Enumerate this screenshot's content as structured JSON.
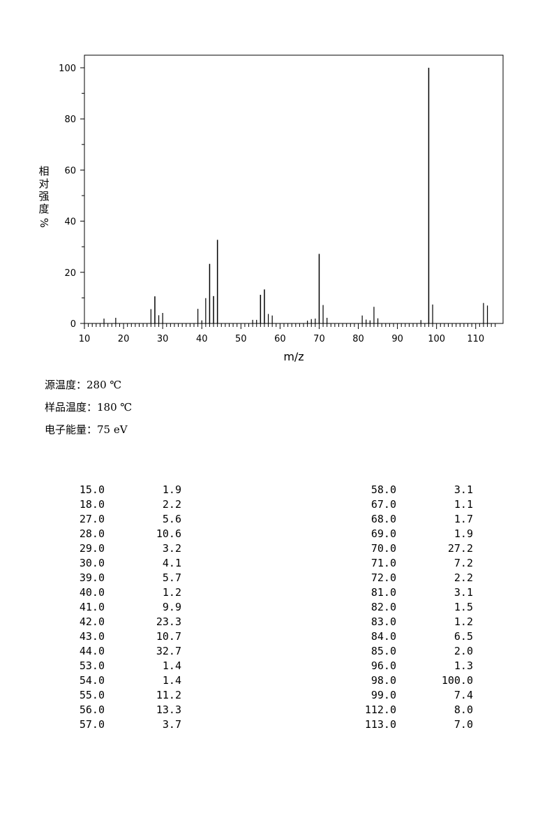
{
  "chart_data": {
    "type": "bar",
    "xlabel": "m/z",
    "ylabel_chars": [
      "相",
      "对",
      "强",
      "度"
    ],
    "ylabel_unit": "%",
    "xlim": [
      10,
      117
    ],
    "ylim": [
      0,
      100
    ],
    "x_ticks": [
      10,
      20,
      30,
      40,
      50,
      60,
      70,
      80,
      90,
      100,
      110
    ],
    "y_ticks": [
      0,
      20,
      40,
      60,
      80,
      100
    ],
    "peaks": [
      {
        "mz": 15.0,
        "intensity": 1.9
      },
      {
        "mz": 18.0,
        "intensity": 2.2
      },
      {
        "mz": 27.0,
        "intensity": 5.6
      },
      {
        "mz": 28.0,
        "intensity": 10.6
      },
      {
        "mz": 29.0,
        "intensity": 3.2
      },
      {
        "mz": 30.0,
        "intensity": 4.1
      },
      {
        "mz": 39.0,
        "intensity": 5.7
      },
      {
        "mz": 40.0,
        "intensity": 1.2
      },
      {
        "mz": 41.0,
        "intensity": 9.9
      },
      {
        "mz": 42.0,
        "intensity": 23.3
      },
      {
        "mz": 43.0,
        "intensity": 10.7
      },
      {
        "mz": 44.0,
        "intensity": 32.7
      },
      {
        "mz": 53.0,
        "intensity": 1.4
      },
      {
        "mz": 54.0,
        "intensity": 1.4
      },
      {
        "mz": 55.0,
        "intensity": 11.2
      },
      {
        "mz": 56.0,
        "intensity": 13.3
      },
      {
        "mz": 57.0,
        "intensity": 3.7
      },
      {
        "mz": 58.0,
        "intensity": 3.1
      },
      {
        "mz": 67.0,
        "intensity": 1.1
      },
      {
        "mz": 68.0,
        "intensity": 1.7
      },
      {
        "mz": 69.0,
        "intensity": 1.9
      },
      {
        "mz": 70.0,
        "intensity": 27.2
      },
      {
        "mz": 71.0,
        "intensity": 7.2
      },
      {
        "mz": 72.0,
        "intensity": 2.2
      },
      {
        "mz": 81.0,
        "intensity": 3.1
      },
      {
        "mz": 82.0,
        "intensity": 1.5
      },
      {
        "mz": 83.0,
        "intensity": 1.2
      },
      {
        "mz": 84.0,
        "intensity": 6.5
      },
      {
        "mz": 85.0,
        "intensity": 2.0
      },
      {
        "mz": 96.0,
        "intensity": 1.3
      },
      {
        "mz": 98.0,
        "intensity": 100.0
      },
      {
        "mz": 99.0,
        "intensity": 7.4
      },
      {
        "mz": 112.0,
        "intensity": 8.0
      },
      {
        "mz": 113.0,
        "intensity": 7.0
      }
    ]
  },
  "params": [
    {
      "label": "源温度：",
      "value": "280 ℃"
    },
    {
      "label": "样品温度：",
      "value": "180 ℃"
    },
    {
      "label": "电子能量：",
      "value": "75 eV"
    }
  ],
  "peak_table_left": [
    [
      "15.0",
      "1.9"
    ],
    [
      "18.0",
      "2.2"
    ],
    [
      "27.0",
      "5.6"
    ],
    [
      "28.0",
      "10.6"
    ],
    [
      "29.0",
      "3.2"
    ],
    [
      "30.0",
      "4.1"
    ],
    [
      "39.0",
      "5.7"
    ],
    [
      "40.0",
      "1.2"
    ],
    [
      "41.0",
      "9.9"
    ],
    [
      "42.0",
      "23.3"
    ],
    [
      "43.0",
      "10.7"
    ],
    [
      "44.0",
      "32.7"
    ],
    [
      "53.0",
      "1.4"
    ],
    [
      "54.0",
      "1.4"
    ],
    [
      "55.0",
      "11.2"
    ],
    [
      "56.0",
      "13.3"
    ],
    [
      "57.0",
      "3.7"
    ]
  ],
  "peak_table_right": [
    [
      "58.0",
      "3.1"
    ],
    [
      "67.0",
      "1.1"
    ],
    [
      "68.0",
      "1.7"
    ],
    [
      "69.0",
      "1.9"
    ],
    [
      "70.0",
      "27.2"
    ],
    [
      "71.0",
      "7.2"
    ],
    [
      "72.0",
      "2.2"
    ],
    [
      "81.0",
      "3.1"
    ],
    [
      "82.0",
      "1.5"
    ],
    [
      "83.0",
      "1.2"
    ],
    [
      "84.0",
      "6.5"
    ],
    [
      "85.0",
      "2.0"
    ],
    [
      "96.0",
      "1.3"
    ],
    [
      "98.0",
      "100.0"
    ],
    [
      "99.0",
      "7.4"
    ],
    [
      "112.0",
      "8.0"
    ],
    [
      "113.0",
      "7.0"
    ]
  ]
}
